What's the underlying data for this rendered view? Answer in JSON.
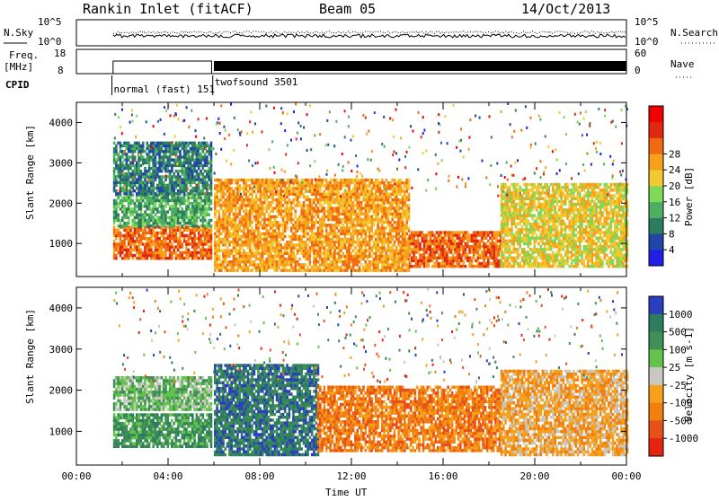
{
  "header": {
    "station": "Rankin Inlet (fitACF)",
    "beam": "Beam 05",
    "date": "14/Oct/2013"
  },
  "noise_panel": {
    "left_label": "N.Sky",
    "right_label": "N.Search",
    "left_ticks": [
      "10^5",
      "10^0"
    ],
    "right_ticks": [
      "10^5",
      "10^0"
    ],
    "legend_style": "dotted"
  },
  "freq_panel": {
    "left_label_1": "Freq.",
    "left_label_2": "[MHz]",
    "right_label": "Nave",
    "left_ticks": [
      "18",
      "8"
    ],
    "right_ticks": [
      "60",
      "0"
    ],
    "legend_style": "dotted"
  },
  "cpid": {
    "label": "CPID",
    "segments": [
      {
        "name": "normal (fast) 151",
        "start_hour": 1.55
      },
      {
        "name": "twofsound 3501",
        "start_hour": 5.95
      }
    ]
  },
  "chart_data": [
    {
      "type": "heatmap",
      "quantity": "Power",
      "ylabel": "Slant Range [km]",
      "ylim": [
        180,
        4500
      ],
      "xlim": [
        0,
        24
      ],
      "y_ticks": [
        "1000",
        "2000",
        "3000",
        "4000"
      ],
      "colorbar": {
        "label": "Power [dB]",
        "ticks": [
          "4",
          "8",
          "12",
          "16",
          "20",
          "24",
          "28"
        ],
        "colors": [
          "#1f1fe6",
          "#2146a8",
          "#2e7d5e",
          "#4caf62",
          "#7ed957",
          "#f2c930",
          "#f7a01c",
          "#f06a12",
          "#e02810",
          "#f00000"
        ]
      },
      "echo_bands": [
        {
          "t0": 1.6,
          "t1": 5.9,
          "r0": 600,
          "r1": 1400,
          "level": "28"
        },
        {
          "t0": 1.6,
          "t1": 5.9,
          "r0": 1400,
          "r1": 2200,
          "level": "12"
        },
        {
          "t0": 1.6,
          "t1": 5.9,
          "r0": 2200,
          "r1": 3500,
          "level": "8"
        },
        {
          "t0": 6.0,
          "t1": 14.5,
          "r0": 300,
          "r1": 2600,
          "level": "24"
        },
        {
          "t0": 14.5,
          "t1": 18.5,
          "r0": 400,
          "r1": 1300,
          "level": "28"
        },
        {
          "t0": 18.5,
          "t1": 24,
          "r0": 400,
          "r1": 2500,
          "level": "20"
        }
      ]
    },
    {
      "type": "heatmap",
      "quantity": "Velocity",
      "ylabel": "Slant Range [km]",
      "xlabel": "Time UT",
      "ylim": [
        180,
        4500
      ],
      "xlim": [
        0,
        24
      ],
      "y_ticks": [
        "1000",
        "2000",
        "3000",
        "4000"
      ],
      "x_ticks": [
        "00:00",
        "04:00",
        "08:00",
        "12:00",
        "16:00",
        "20:00",
        "00:00"
      ],
      "colorbar": {
        "label": "Velocity [m s-1]",
        "ticks": [
          "1000",
          "500",
          "100",
          "25",
          "-25",
          "-100",
          "-500",
          "-1000"
        ],
        "colors": [
          "#2a3fbf",
          "#2e7d5e",
          "#3f8f56",
          "#63c24c",
          "#c8c8c0",
          "#f7a01c",
          "#f07f10",
          "#e8501a",
          "#e52410"
        ]
      },
      "echo_bands": [
        {
          "t0": 1.6,
          "t1": 5.9,
          "r0": 600,
          "r1": 1400,
          "level": "100"
        },
        {
          "t0": 1.6,
          "t1": 5.9,
          "r0": 1500,
          "r1": 2300,
          "level": "25"
        },
        {
          "t0": 6.0,
          "t1": 10.5,
          "r0": 400,
          "r1": 2600,
          "level": "500"
        },
        {
          "t0": 10.5,
          "t1": 18.5,
          "r0": 500,
          "r1": 2100,
          "level": "-500"
        },
        {
          "t0": 18.5,
          "t1": 24,
          "r0": 400,
          "r1": 2500,
          "level": "-100"
        }
      ]
    }
  ]
}
